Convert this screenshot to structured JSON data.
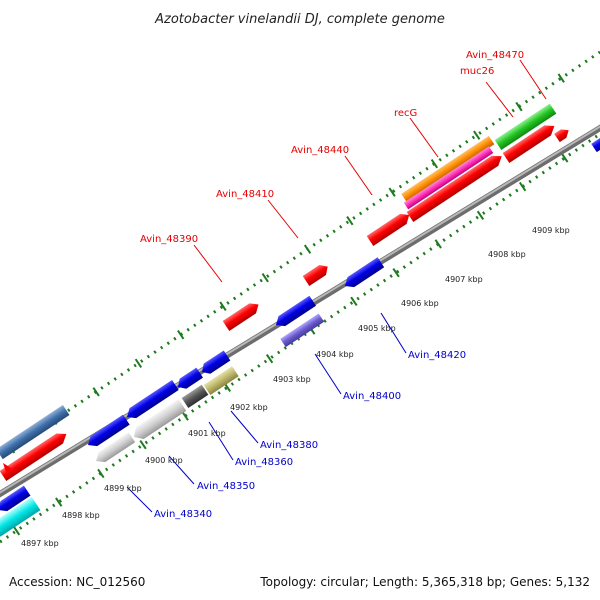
{
  "title": "Azotobacter vinelandii DJ, complete genome",
  "footer": {
    "accession": "Accession: NC_012560",
    "topology": "Topology: circular; Length: 5,365,318 bp; Genes: 5,132"
  },
  "colors": {
    "red": "#ff0000",
    "blue": "#0000e6",
    "forward_label": "#e60000",
    "reverse_label": "#0000cc",
    "tick": "#1e7a1e",
    "backbone": "#8a8a8a"
  },
  "kbp_labels": [
    "4897 kbp",
    "4898 kbp",
    "4899 kbp",
    "4900 kbp",
    "4901 kbp",
    "4902 kbp",
    "4903 kbp",
    "4904 kbp",
    "4905 kbp",
    "4906 kbp",
    "4907 kbp",
    "4908 kbp",
    "4909 kbp"
  ],
  "forward_labels": [
    "Avin_48390",
    "Avin_48410",
    "Avin_48440",
    "recG",
    "muc26",
    "Avin_48470"
  ],
  "reverse_labels": [
    "Avin_48340",
    "Avin_48350",
    "Avin_48360",
    "Avin_48380",
    "Avin_48400",
    "Avin_48420"
  ],
  "gene_tracks": [
    {
      "name": "reverse-gene",
      "color": "blue"
    },
    {
      "name": "forward-gene",
      "color": "red"
    },
    {
      "name": "cds-feature",
      "color": "orange"
    },
    {
      "name": "rna-feature",
      "color": "magenta"
    },
    {
      "name": "gene-feature",
      "color": "green"
    },
    {
      "name": "misc-feature",
      "color": "slate"
    },
    {
      "name": "tRNA-feature",
      "color": "olive"
    },
    {
      "name": "misc-feature-grey",
      "color": "grey"
    },
    {
      "name": "repeat-feature",
      "color": "cyan"
    }
  ]
}
